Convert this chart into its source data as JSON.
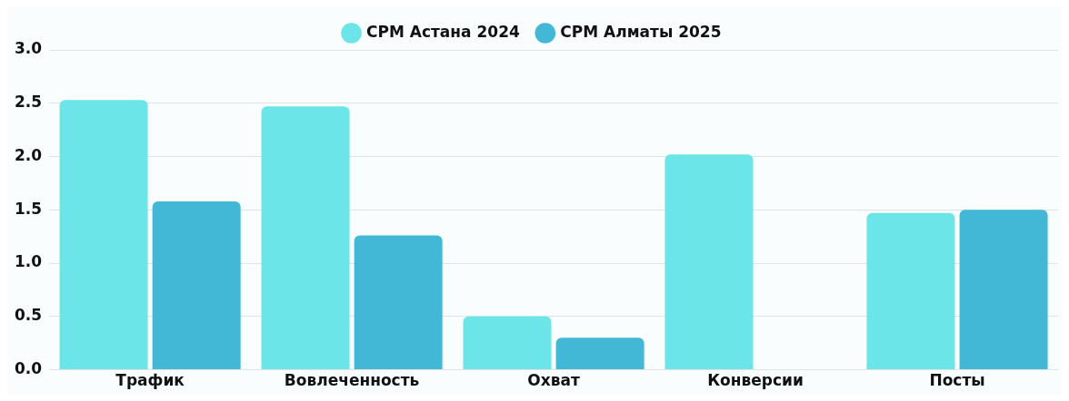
{
  "chart_data": {
    "type": "bar",
    "categories": [
      "Трафик",
      "Вовлеченность",
      "Охват",
      "Конверсии",
      "Посты"
    ],
    "series": [
      {
        "name": "CPM Астана 2024",
        "color": "#6ce5e8",
        "values": [
          2.53,
          2.47,
          0.5,
          2.02,
          1.47
        ]
      },
      {
        "name": "CPM Алматы 2025",
        "color": "#42b8d6",
        "values": [
          1.58,
          1.26,
          0.3,
          null,
          1.5
        ]
      }
    ],
    "ylim": [
      0,
      3
    ],
    "yticks": [
      {
        "value": 0,
        "label": "0.0"
      },
      {
        "value": 0.5,
        "label": "0.5"
      },
      {
        "value": 1,
        "label": "1.0"
      },
      {
        "value": 1.5,
        "label": "1.5"
      },
      {
        "value": 2,
        "label": "2.0"
      },
      {
        "value": 2.5,
        "label": "2.5"
      },
      {
        "value": 3,
        "label": "3.0"
      }
    ],
    "grid": "y",
    "legend": "top"
  }
}
